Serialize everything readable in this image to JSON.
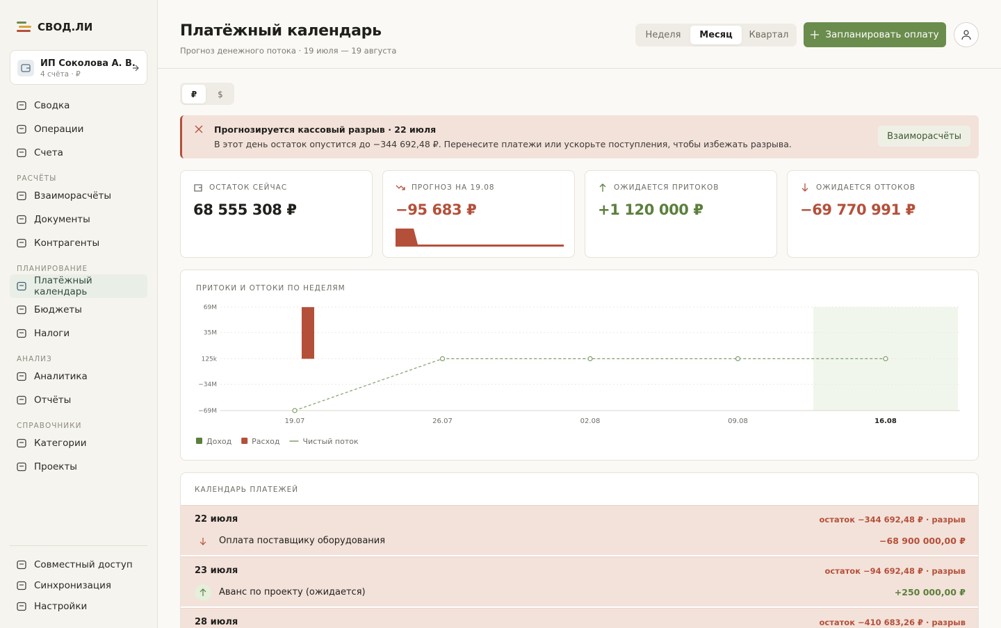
{
  "sidebar": {
    "brand": "СВОД.ЛИ",
    "account": {
      "name": "ИП Соколова А. В.",
      "meta": "4 счёта · ₽"
    },
    "nav": [
      {
        "items": [
          "Сводка",
          "Операции",
          "Счета"
        ]
      },
      {
        "title": "РАСЧЁТЫ",
        "items": [
          "Взаиморасчёты",
          "Документы",
          "Контрагенты"
        ]
      },
      {
        "title": "ПЛАНИРОВАНИЕ",
        "items": [
          "Платёжный календарь",
          "Бюджеты",
          "Налоги"
        ]
      },
      {
        "title": "АНАЛИЗ",
        "items": [
          "Аналитика",
          "Отчёты"
        ]
      },
      {
        "title": "СПРАВОЧНИКИ",
        "items": [
          "Категории",
          "Проекты"
        ]
      }
    ],
    "footer": [
      "Совместный доступ",
      "Синхронизация",
      "Настройки"
    ]
  },
  "header": {
    "title": "Платёжный календарь",
    "subtitle": "Прогноз денежного потока · 19 июля — 19 августа",
    "periods": [
      "Неделя",
      "Месяц",
      "Квартал"
    ],
    "action": "Запланировать оплату"
  },
  "currencies": [
    "₽",
    "$"
  ],
  "alert": {
    "title": "Прогнозируется кассовый разрыв · 22 июля",
    "text": "В этот день остаток опустится до −344 692,48 ₽. Перенесите платежи или ускорьте поступления, чтобы избежать разрыва.",
    "action": "Взаиморасчёты"
  },
  "kpis": [
    {
      "label": "ОСТАТОК СЕЙЧАС",
      "value": "68 555 308 ₽",
      "tone": "neutral"
    },
    {
      "label": "ПРОГНОЗ НА 19.08",
      "value": "−95 683 ₽",
      "tone": "negative"
    },
    {
      "label": "ОЖИДАЕТСЯ ПРИТОКОВ",
      "value": "+1 120 000 ₽",
      "tone": "positive"
    },
    {
      "label": "ОЖИДАЕТСЯ ОТТОКОВ",
      "value": "−69 770 991 ₽",
      "tone": "negative"
    }
  ],
  "chart_data": {
    "type": "bar",
    "title": "ПРИТОКИ И ОТТОКИ ПО НЕДЕЛЯМ",
    "categories": [
      "19.07",
      "26.07",
      "02.08",
      "09.08",
      "16.08"
    ],
    "series": [
      {
        "name": "Доход",
        "color": "#5b7f3c",
        "values": [
          0,
          0,
          0,
          0,
          0
        ]
      },
      {
        "name": "Расход",
        "color": "#b4503a",
        "values": [
          68900000,
          0,
          0,
          0,
          0
        ]
      },
      {
        "name": "Чистый поток",
        "type": "line",
        "color": "#7f9d6a",
        "values": [
          -69000000,
          125000,
          125000,
          125000,
          125000
        ]
      }
    ],
    "ylim": [
      -69000000,
      69000000
    ],
    "yticks": [
      {
        "value": 69000000,
        "label": "69M"
      },
      {
        "value": 35000000,
        "label": "35M"
      },
      {
        "value": 125000,
        "label": "125k"
      },
      {
        "value": -34000000,
        "label": "−34M"
      },
      {
        "value": -69000000,
        "label": "−69M"
      }
    ],
    "grid": true
  },
  "payments": {
    "title": "КАЛЕНДАРЬ ПЛАТЕЖЕЙ",
    "days": [
      {
        "date": "22 июля",
        "balance": "остаток −344 692,48 ₽ · разрыв",
        "items": [
          {
            "name": "Оплата поставщику оборудования",
            "amount": "−68 900 000,00 ₽",
            "direction": "out"
          }
        ]
      },
      {
        "date": "23 июля",
        "balance": "остаток −94 692,48 ₽ · разрыв",
        "items": [
          {
            "name": "Аванс по проекту (ожидается)",
            "amount": "+250 000,00 ₽",
            "direction": "in"
          }
        ]
      },
      {
        "date": "28 июля",
        "balance": "остаток −410 683,26 ₽ · разрыв",
        "items": []
      }
    ]
  }
}
